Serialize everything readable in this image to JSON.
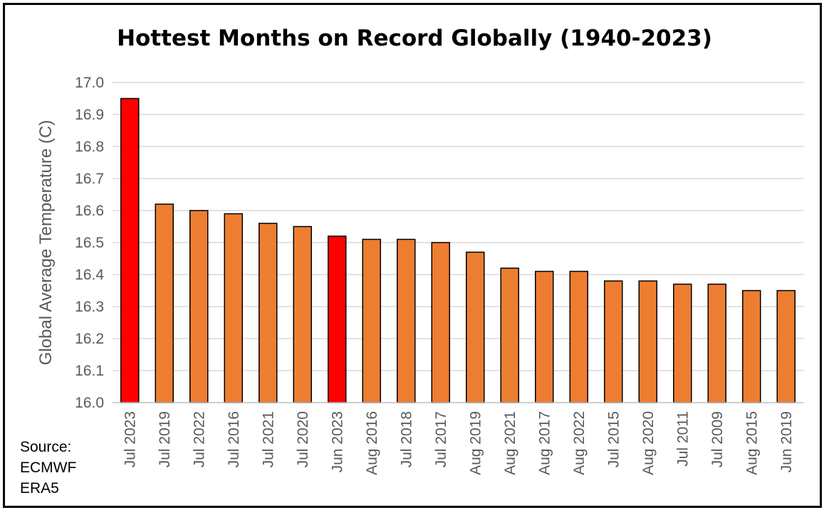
{
  "chart_data": {
    "type": "bar",
    "title": "Hottest Months on Record Globally (1940-2023)",
    "ylabel": "Global Average Temperature (C)",
    "xlabel": "",
    "ylim": [
      16.0,
      17.0
    ],
    "yticks": [
      "16.0",
      "16.1",
      "16.2",
      "16.3",
      "16.4",
      "16.5",
      "16.6",
      "16.7",
      "16.8",
      "16.9",
      "17.0"
    ],
    "grid": true,
    "categories": [
      "Jul 2023",
      "Jul 2019",
      "Jul 2022",
      "Jul 2016",
      "Jul 2021",
      "Jul 2020",
      "Jun 2023",
      "Aug 2016",
      "Jul 2018",
      "Jul 2017",
      "Aug 2019",
      "Aug 2021",
      "Aug 2017",
      "Aug 2022",
      "Jul 2015",
      "Aug 2020",
      "Jul 2011",
      "Jul 2009",
      "Aug 2015",
      "Jun 2019"
    ],
    "values": [
      16.95,
      16.62,
      16.6,
      16.59,
      16.56,
      16.55,
      16.52,
      16.51,
      16.51,
      16.5,
      16.47,
      16.42,
      16.41,
      16.41,
      16.38,
      16.38,
      16.37,
      16.37,
      16.35,
      16.35
    ],
    "highlight": [
      "Jul 2023",
      "Jun 2023"
    ],
    "colors": {
      "default": "#ED7D31",
      "highlight": "#FF0000",
      "outline": "#000000",
      "grid": "#D9D9D9"
    }
  },
  "source": {
    "line1": "Source:",
    "line2": "ECMWF",
    "line3": "ERA5"
  }
}
